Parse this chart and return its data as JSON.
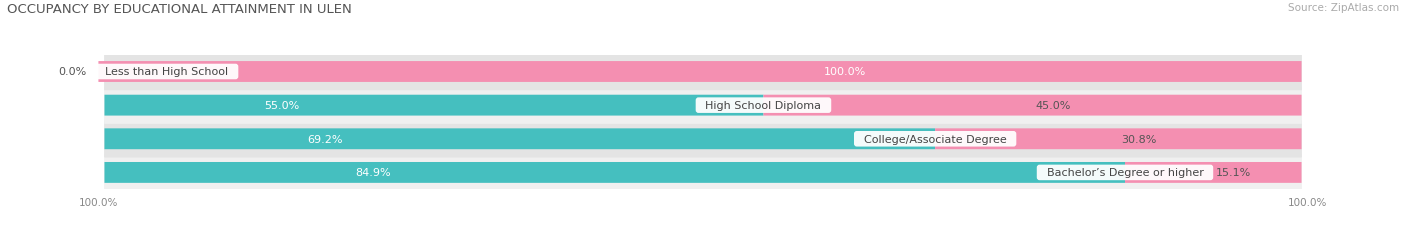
{
  "title": "OCCUPANCY BY EDUCATIONAL ATTAINMENT IN ULEN",
  "source": "Source: ZipAtlas.com",
  "categories": [
    "Less than High School",
    "High School Diploma",
    "College/Associate Degree",
    "Bachelor’s Degree or higher"
  ],
  "owner_pct": [
    0.0,
    55.0,
    69.2,
    84.9
  ],
  "renter_pct": [
    100.0,
    45.0,
    30.8,
    15.1
  ],
  "owner_color": "#45BFBF",
  "renter_color": "#F48FB1",
  "row_bg_light": "#F0F0F0",
  "row_bg_dark": "#E4E4E4",
  "title_fontsize": 9.5,
  "label_fontsize": 8,
  "pct_fontsize_inside": 8,
  "pct_fontsize_outside": 8,
  "source_fontsize": 7.5,
  "legend_fontsize": 8,
  "bar_height": 0.62,
  "figsize": [
    14.06,
    2.32
  ],
  "dpi": 100
}
